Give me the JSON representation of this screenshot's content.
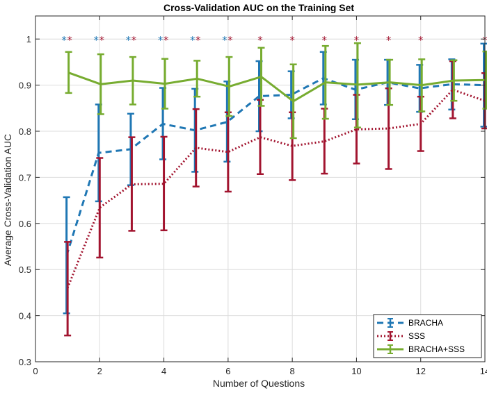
{
  "chart_data": {
    "type": "line",
    "title": "Cross-Validation AUC on the Training Set",
    "xlabel": "Number of Questions",
    "ylabel": "Average Cross-Validation AUC",
    "xlim": [
      0,
      14
    ],
    "ylim": [
      0.3,
      1.05
    ],
    "xticks": [
      0,
      2,
      4,
      6,
      8,
      10,
      12,
      14
    ],
    "yticks": [
      0.3,
      0.4,
      0.5,
      0.6,
      0.7,
      0.8,
      0.9,
      1.0
    ],
    "xtick_labels": [
      "0",
      "2",
      "4",
      "6",
      "8",
      "10",
      "12",
      "14"
    ],
    "ytick_labels": [
      "0.3",
      "0.4",
      "0.5",
      "0.6",
      "0.7",
      "0.8",
      "0.9",
      "1"
    ],
    "grid": true,
    "legend_position": "bottom-right",
    "x": [
      1,
      2,
      3,
      4,
      5,
      6,
      7,
      8,
      9,
      10,
      11,
      12,
      13,
      14
    ],
    "series": [
      {
        "name": "BRACHA",
        "color": "#1f77b4",
        "style": "dashed",
        "values": [
          0.53,
          0.753,
          0.761,
          0.816,
          0.802,
          0.82,
          0.876,
          0.879,
          0.915,
          0.89,
          0.906,
          0.893,
          0.902,
          0.9
        ],
        "error_low": [
          0.405,
          0.648,
          0.683,
          0.739,
          0.712,
          0.734,
          0.8,
          0.828,
          0.858,
          0.826,
          0.857,
          0.842,
          0.847,
          0.81
        ],
        "error_high": [
          0.657,
          0.858,
          0.838,
          0.894,
          0.892,
          0.908,
          0.952,
          0.93,
          0.972,
          0.955,
          0.955,
          0.944,
          0.956,
          0.99
        ]
      },
      {
        "name": "SSS",
        "color": "#a2142f",
        "style": "dotted",
        "values": [
          0.46,
          0.634,
          0.685,
          0.686,
          0.764,
          0.755,
          0.787,
          0.768,
          0.778,
          0.804,
          0.806,
          0.816,
          0.89,
          0.866
        ],
        "error_low": [
          0.357,
          0.526,
          0.584,
          0.585,
          0.68,
          0.669,
          0.707,
          0.694,
          0.708,
          0.73,
          0.718,
          0.757,
          0.828,
          0.806
        ],
        "error_high": [
          0.56,
          0.742,
          0.787,
          0.788,
          0.848,
          0.841,
          0.868,
          0.841,
          0.849,
          0.879,
          0.893,
          0.875,
          0.952,
          0.926
        ]
      },
      {
        "name": "BRACHA+SSS",
        "color": "#77ac30",
        "style": "solid",
        "values": [
          0.927,
          0.902,
          0.91,
          0.903,
          0.914,
          0.897,
          0.918,
          0.865,
          0.906,
          0.901,
          0.906,
          0.9,
          0.91,
          0.911
        ],
        "error_low": [
          0.883,
          0.837,
          0.858,
          0.849,
          0.875,
          0.833,
          0.855,
          0.785,
          0.827,
          0.808,
          0.857,
          0.843,
          0.866,
          0.849
        ],
        "error_high": [
          0.972,
          0.967,
          0.961,
          0.957,
          0.953,
          0.961,
          0.981,
          0.945,
          0.985,
          0.991,
          0.955,
          0.956,
          0.954,
          0.973
        ]
      }
    ],
    "significance_markers": [
      {
        "x": 1,
        "series": [
          "BRACHA",
          "SSS"
        ],
        "symbol": "*"
      },
      {
        "x": 2,
        "series": [
          "BRACHA",
          "SSS"
        ],
        "symbol": "*"
      },
      {
        "x": 3,
        "series": [
          "BRACHA",
          "SSS"
        ],
        "symbol": "*"
      },
      {
        "x": 4,
        "series": [
          "BRACHA",
          "SSS"
        ],
        "symbol": "*"
      },
      {
        "x": 5,
        "series": [
          "BRACHA",
          "SSS"
        ],
        "symbol": "*"
      },
      {
        "x": 6,
        "series": [
          "BRACHA",
          "SSS"
        ],
        "symbol": "*"
      },
      {
        "x": 7,
        "series": [
          "SSS"
        ],
        "symbol": "*"
      },
      {
        "x": 8,
        "series": [
          "SSS"
        ],
        "symbol": "*"
      },
      {
        "x": 9,
        "series": [
          "SSS"
        ],
        "symbol": "*"
      },
      {
        "x": 10,
        "series": [
          "SSS"
        ],
        "symbol": "*"
      },
      {
        "x": 11,
        "series": [
          "SSS"
        ],
        "symbol": "*"
      },
      {
        "x": 12,
        "series": [
          "SSS"
        ],
        "symbol": "*"
      },
      {
        "x": 14,
        "series": [
          "SSS"
        ],
        "symbol": "*"
      }
    ],
    "significance_y": 1.005
  }
}
